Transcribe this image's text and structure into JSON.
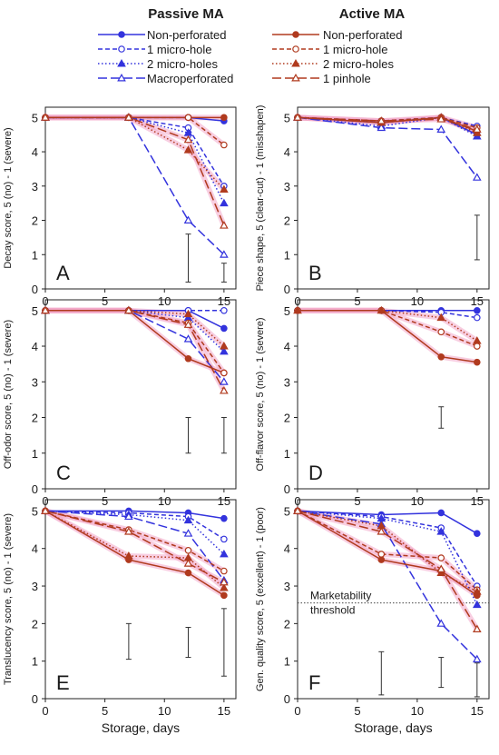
{
  "legend": {
    "passive_title": "Passive MA",
    "active_title": "Active MA",
    "passive_entries": [
      {
        "name": "Non-perforated",
        "color": "#3333dd",
        "dash": "solid",
        "marker": "circle-filled"
      },
      {
        "name": "1 micro-hole",
        "color": "#3333dd",
        "dash": "dashed",
        "marker": "circle-open"
      },
      {
        "name": "2 micro-holes",
        "color": "#3333dd",
        "dash": "dotted",
        "marker": "triangle-filled"
      },
      {
        "name": "Macroperforated",
        "color": "#3333dd",
        "dash": "longdash",
        "marker": "triangle-open"
      }
    ],
    "active_entries": [
      {
        "name": "Non-perforated",
        "color": "#b03a1e",
        "dash": "solid",
        "marker": "circle-filled"
      },
      {
        "name": "1 micro-hole",
        "color": "#b03a1e",
        "dash": "dashed",
        "marker": "circle-open"
      },
      {
        "name": "2 micro-holes",
        "color": "#b03a1e",
        "dash": "dotted",
        "marker": "triangle-filled"
      },
      {
        "name": "1 pinhole",
        "color": "#b03a1e",
        "dash": "longdash",
        "marker": "triangle-open"
      }
    ]
  },
  "colors": {
    "passive": "#3333dd",
    "active": "#b03a1e",
    "halo": "#f2a6c8"
  },
  "chart_data": [
    {
      "type": "line",
      "panel_letter": "A",
      "ylabel": "Decay score, 5 (no) - 1 (severe)",
      "xlabel": "",
      "x": [
        0,
        7,
        12,
        15
      ],
      "xlim": [
        0,
        16
      ],
      "ylim": [
        0,
        5.3
      ],
      "xticks": [
        0,
        5,
        10,
        15
      ],
      "yticks": [
        0,
        1,
        2,
        3,
        4,
        5
      ],
      "series": [
        {
          "group": "passive",
          "style": 0,
          "values": [
            5,
            5,
            5,
            4.9
          ]
        },
        {
          "group": "passive",
          "style": 1,
          "values": [
            5,
            5,
            4.7,
            3.0
          ]
        },
        {
          "group": "passive",
          "style": 2,
          "values": [
            5,
            5,
            4.55,
            2.5
          ]
        },
        {
          "group": "passive",
          "style": 3,
          "values": [
            5,
            5,
            2.0,
            1.0
          ]
        },
        {
          "group": "active",
          "style": 0,
          "values": [
            5,
            5,
            5,
            5
          ]
        },
        {
          "group": "active",
          "style": 1,
          "values": [
            5,
            5,
            5,
            4.2
          ]
        },
        {
          "group": "active",
          "style": 2,
          "values": [
            5,
            5,
            4.05,
            2.9
          ]
        },
        {
          "group": "active",
          "style": 3,
          "values": [
            5,
            5,
            4.35,
            1.85
          ]
        }
      ],
      "error_bars": [
        {
          "x": 12,
          "low": 0.2,
          "high": 1.6
        },
        {
          "x": 15,
          "low": 0.2,
          "high": 0.75
        }
      ],
      "threshold": null
    },
    {
      "type": "line",
      "panel_letter": "B",
      "ylabel": "Piece shape, 5 (clear-cut) - 1 (misshapen)",
      "xlabel": "",
      "x": [
        0,
        7,
        12,
        15
      ],
      "xlim": [
        0,
        16
      ],
      "ylim": [
        0,
        5.3
      ],
      "xticks": [
        0,
        5,
        10,
        15
      ],
      "yticks": [
        0,
        1,
        2,
        3,
        4,
        5
      ],
      "series": [
        {
          "group": "passive",
          "style": 0,
          "values": [
            5,
            4.85,
            5,
            4.5
          ]
        },
        {
          "group": "passive",
          "style": 1,
          "values": [
            5,
            4.9,
            5,
            4.75
          ]
        },
        {
          "group": "passive",
          "style": 2,
          "values": [
            5,
            4.75,
            5,
            4.45
          ]
        },
        {
          "group": "passive",
          "style": 3,
          "values": [
            5,
            4.7,
            4.65,
            3.25
          ]
        },
        {
          "group": "active",
          "style": 0,
          "values": [
            5,
            4.85,
            5,
            4.6
          ]
        },
        {
          "group": "active",
          "style": 1,
          "values": [
            5,
            4.9,
            5,
            4.7
          ]
        },
        {
          "group": "active",
          "style": 2,
          "values": [
            5,
            4.85,
            5,
            4.55
          ]
        },
        {
          "group": "active",
          "style": 3,
          "values": [
            5,
            4.9,
            4.95,
            4.65
          ]
        }
      ],
      "error_bars": [
        {
          "x": 15,
          "low": 0.85,
          "high": 2.15
        }
      ],
      "threshold": null
    },
    {
      "type": "line",
      "panel_letter": "C",
      "ylabel": "Off-odor score, 5 (no) - 1 (severe)",
      "xlabel": "",
      "x": [
        0,
        7,
        12,
        15
      ],
      "xlim": [
        0,
        16
      ],
      "ylim": [
        0,
        5.3
      ],
      "xticks": [
        0,
        5,
        10,
        15
      ],
      "yticks": [
        0,
        1,
        2,
        3,
        4,
        5
      ],
      "series": [
        {
          "group": "passive",
          "style": 0,
          "values": [
            5,
            5,
            5,
            4.5
          ]
        },
        {
          "group": "passive",
          "style": 1,
          "values": [
            5,
            5,
            5,
            5
          ]
        },
        {
          "group": "passive",
          "style": 2,
          "values": [
            5,
            5,
            4.8,
            3.85
          ]
        },
        {
          "group": "passive",
          "style": 3,
          "values": [
            5,
            5,
            4.2,
            3.0
          ]
        },
        {
          "group": "active",
          "style": 0,
          "values": [
            5,
            5,
            3.65,
            3.25
          ]
        },
        {
          "group": "active",
          "style": 1,
          "values": [
            5,
            5,
            4.65,
            3.25
          ]
        },
        {
          "group": "active",
          "style": 2,
          "values": [
            5,
            5,
            4.9,
            4.0
          ]
        },
        {
          "group": "active",
          "style": 3,
          "values": [
            5,
            5,
            4.6,
            2.75
          ]
        }
      ],
      "error_bars": [
        {
          "x": 12,
          "low": 1.0,
          "high": 2.0
        },
        {
          "x": 15,
          "low": 1.0,
          "high": 2.0
        }
      ],
      "threshold": null
    },
    {
      "type": "line",
      "panel_letter": "D",
      "ylabel": "Off-flavor score, 5 (no) - 1 (severe)",
      "xlabel": "",
      "x": [
        0,
        7,
        12,
        15
      ],
      "xlim": [
        0,
        16
      ],
      "ylim": [
        0,
        5.3
      ],
      "xticks": [
        0,
        5,
        10,
        15
      ],
      "yticks": [
        0,
        1,
        2,
        3,
        4,
        5
      ],
      "series": [
        {
          "group": "passive",
          "style": 0,
          "values": [
            5,
            5,
            5,
            5
          ]
        },
        {
          "group": "passive",
          "style": 1,
          "values": [
            5,
            5,
            4.95,
            4.8
          ]
        },
        {
          "group": "active",
          "style": 0,
          "values": [
            5,
            5,
            3.7,
            3.55
          ]
        },
        {
          "group": "active",
          "style": 1,
          "values": [
            5,
            5,
            4.4,
            4.0
          ]
        },
        {
          "group": "active",
          "style": 2,
          "values": [
            5,
            5,
            4.8,
            4.15
          ]
        }
      ],
      "error_bars": [
        {
          "x": 12,
          "low": 1.7,
          "high": 2.3
        }
      ],
      "threshold": null
    },
    {
      "type": "line",
      "panel_letter": "E",
      "ylabel": "Translucency score, 5 (no) - 1 (severe)",
      "xlabel": "Storage, days",
      "x": [
        0,
        7,
        12,
        15
      ],
      "xlim": [
        0,
        16
      ],
      "ylim": [
        0,
        5.3
      ],
      "xticks": [
        0,
        5,
        10,
        15
      ],
      "yticks": [
        0,
        1,
        2,
        3,
        4,
        5
      ],
      "series": [
        {
          "group": "passive",
          "style": 0,
          "values": [
            5,
            5,
            4.95,
            4.8
          ]
        },
        {
          "group": "passive",
          "style": 1,
          "values": [
            5,
            4.95,
            4.85,
            4.25
          ]
        },
        {
          "group": "passive",
          "style": 2,
          "values": [
            5,
            4.9,
            4.75,
            3.85
          ]
        },
        {
          "group": "passive",
          "style": 3,
          "values": [
            5,
            4.85,
            4.4,
            3.15
          ]
        },
        {
          "group": "active",
          "style": 0,
          "values": [
            5,
            3.7,
            3.35,
            2.75
          ]
        },
        {
          "group": "active",
          "style": 1,
          "values": [
            5,
            4.5,
            3.95,
            3.4
          ]
        },
        {
          "group": "active",
          "style": 2,
          "values": [
            5,
            3.8,
            3.75,
            2.95
          ]
        },
        {
          "group": "active",
          "style": 3,
          "values": [
            5,
            4.45,
            3.6,
            3.1
          ]
        }
      ],
      "error_bars": [
        {
          "x": 7,
          "low": 1.05,
          "high": 2.0
        },
        {
          "x": 12,
          "low": 1.1,
          "high": 1.9
        },
        {
          "x": 15,
          "low": 0.6,
          "high": 2.4
        }
      ],
      "threshold": null
    },
    {
      "type": "line",
      "panel_letter": "F",
      "ylabel": "Gen. quality score, 5 (excellent) - 1 (poor)",
      "xlabel": "Storage, days",
      "x": [
        0,
        7,
        12,
        15
      ],
      "xlim": [
        0,
        16
      ],
      "ylim": [
        0,
        5.3
      ],
      "xticks": [
        0,
        5,
        10,
        15
      ],
      "yticks": [
        0,
        1,
        2,
        3,
        4,
        5
      ],
      "series": [
        {
          "group": "passive",
          "style": 0,
          "values": [
            5,
            4.9,
            4.95,
            4.4
          ]
        },
        {
          "group": "passive",
          "style": 1,
          "values": [
            5,
            4.85,
            4.55,
            3.0
          ]
        },
        {
          "group": "passive",
          "style": 2,
          "values": [
            5,
            4.8,
            4.45,
            2.5
          ]
        },
        {
          "group": "passive",
          "style": 3,
          "values": [
            5,
            4.65,
            2.0,
            1.05
          ]
        },
        {
          "group": "active",
          "style": 0,
          "values": [
            5,
            3.7,
            3.4,
            2.75
          ]
        },
        {
          "group": "active",
          "style": 1,
          "values": [
            5,
            3.85,
            3.75,
            2.9
          ]
        },
        {
          "group": "active",
          "style": 2,
          "values": [
            5,
            4.6,
            3.35,
            2.85
          ]
        },
        {
          "group": "active",
          "style": 3,
          "values": [
            5,
            4.45,
            3.45,
            1.85
          ]
        }
      ],
      "error_bars": [
        {
          "x": 7,
          "low": 0.1,
          "high": 1.25
        },
        {
          "x": 12,
          "low": 0.3,
          "high": 1.1
        },
        {
          "x": 15,
          "low": 0.05,
          "high": 0.95
        }
      ],
      "threshold": {
        "value": 2.55,
        "label_line1": "Marketability",
        "label_line2": "threshold"
      }
    }
  ]
}
